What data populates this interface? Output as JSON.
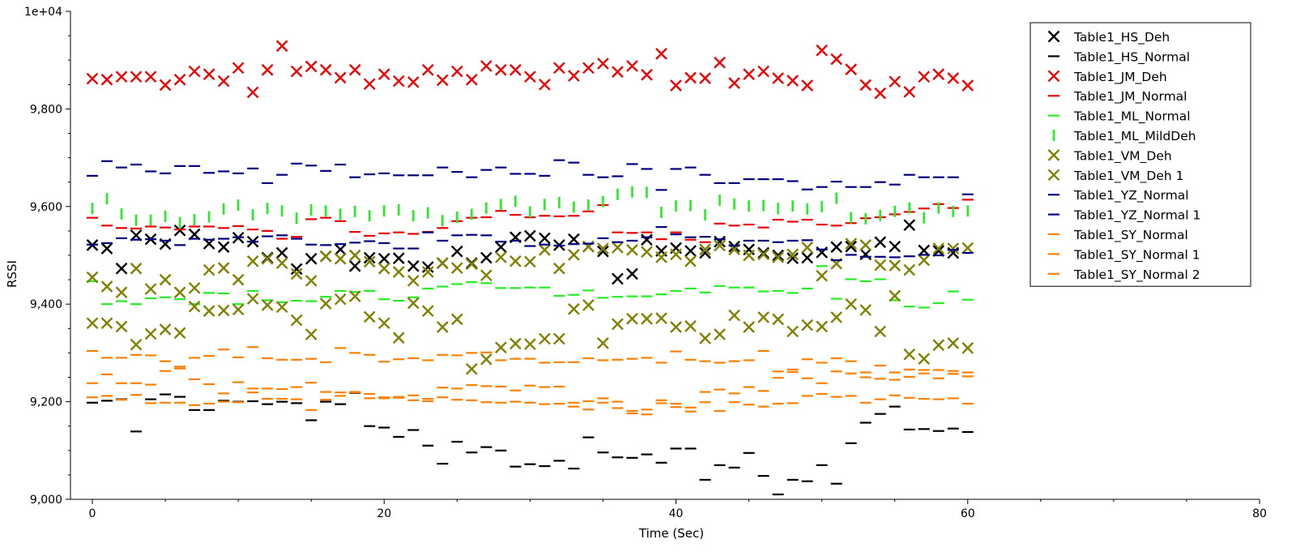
{
  "chart_data": {
    "type": "scatter",
    "xlabel": "Time (Sec)",
    "ylabel": "RSSI",
    "xlim": [
      -1.5,
      80
    ],
    "ylim": [
      9000,
      10000
    ],
    "x_ticks": [
      0,
      20,
      40,
      60,
      80
    ],
    "y_ticks": [
      {
        "value": 9000,
        "label": "9,000"
      },
      {
        "value": 9200,
        "label": "9,200"
      },
      {
        "value": 9400,
        "label": "9,400"
      },
      {
        "value": 9600,
        "label": "9,600"
      },
      {
        "value": 9800,
        "label": "9,800"
      },
      {
        "value": 10000,
        "label": "1e+04"
      }
    ],
    "grid": false,
    "legend_position": "top-right",
    "series": [
      {
        "name": "Table1_HS_Deh",
        "marker": "x",
        "color": "#000000",
        "values": [
          9521,
          9514,
          9473,
          9541,
          9533,
          9523,
          9551,
          9543,
          9524,
          9517,
          9536,
          9528,
          9495,
          9505,
          9472,
          9493,
          9498,
          9512,
          9478,
          9495,
          9493,
          9494,
          9478,
          9476,
          9484,
          9508,
          9484,
          9495,
          9517,
          9537,
          9540,
          9535,
          9521,
          9533,
          9518,
          9508,
          9452,
          9462,
          9532,
          9509,
          9515,
          9509,
          9505,
          9528,
          9518,
          9512,
          9505,
          9500,
          9494,
          9495,
          9506,
          9517,
          9518,
          9502,
          9527,
          9518,
          9562,
          9510,
          9509,
          9505
        ]
      },
      {
        "name": "Table1_HS_Normal",
        "marker": "hline",
        "color": "#000000",
        "values": [
          9198,
          9202,
          9205,
          9139,
          9205,
          9215,
          9210,
          9183,
          9183,
          9202,
          9200,
          9201,
          9195,
          9200,
          9197,
          9162,
          9200,
          9195,
          9218,
          9150,
          9147,
          9128,
          9142,
          9110,
          9073,
          9118,
          9096,
          9107,
          9100,
          9067,
          9072,
          9068,
          9079,
          9063,
          9127,
          9096,
          9086,
          9085,
          9092,
          9075,
          9104,
          9104,
          9040,
          9070,
          9065,
          9095,
          9048,
          9010,
          9040,
          9037,
          9070,
          9032,
          9115,
          9157,
          9175,
          9190,
          9143,
          9144,
          9140,
          9145,
          9138
        ]
      },
      {
        "name": "Table1_JM_Deh",
        "marker": "x",
        "color": "#ee0000",
        "values": [
          9862,
          9860,
          9866,
          9866,
          9866,
          9849,
          9860,
          9877,
          9871,
          9857,
          9884,
          9834,
          9880,
          9929,
          9877,
          9887,
          9880,
          9864,
          9880,
          9851,
          9871,
          9857,
          9855,
          9880,
          9859,
          9877,
          9860,
          9888,
          9880,
          9880,
          9866,
          9850,
          9884,
          9868,
          9884,
          9893,
          9876,
          9888,
          9870,
          9913,
          9848,
          9864,
          9863,
          9895,
          9853,
          9871,
          9877,
          9863,
          9858,
          9848,
          9920,
          9902,
          9881,
          9849,
          9832,
          9856,
          9835,
          9866,
          9871,
          9863,
          9848
        ]
      },
      {
        "name": "Table1_JM_Normal",
        "marker": "hline",
        "color": "#ee0000",
        "values": [
          9577,
          9561,
          9556,
          9555,
          9559,
          9557,
          9553,
          9559,
          9559,
          9556,
          9560,
          9553,
          9550,
          9534,
          9538,
          9574,
          9577,
          9570,
          9548,
          9540,
          9545,
          9547,
          9544,
          9548,
          9556,
          9570,
          9577,
          9578,
          9591,
          9583,
          9578,
          9581,
          9580,
          9581,
          9590,
          9603,
          9547,
          9546,
          9547,
          9533,
          9547,
          9532,
          9527,
          9565,
          9561,
          9563,
          9557,
          9573,
          9569,
          9573,
          9563,
          9561,
          9566,
          9576,
          9578,
          9584,
          9589,
          9596,
          9605,
          9597,
          9614
        ]
      },
      {
        "name": "Table1_ML_Normal",
        "marker": "hline",
        "color": "#22ee22",
        "values": [
          9447,
          9400,
          9406,
          9400,
          9412,
          9414,
          9410,
          9400,
          9423,
          9422,
          9400,
          9427,
          9408,
          9404,
          9407,
          9406,
          9415,
          9427,
          9425,
          9427,
          9410,
          9407,
          9414,
          9432,
          9436,
          9441,
          9445,
          9443,
          9433,
          9433,
          9434,
          9434,
          9417,
          9419,
          9428,
          9413,
          9415,
          9416,
          9416,
          9420,
          9427,
          9432,
          9424,
          9437,
          9434,
          9434,
          9426,
          9427,
          9423,
          9432,
          9478,
          9411,
          9451,
          9447,
          9451,
          9408,
          9395,
          9393,
          9402,
          9426,
          9409
        ]
      },
      {
        "name": "Table1_ML_MildDeh",
        "marker": "vline",
        "color": "#22ee22",
        "values": [
          9596,
          9616,
          9585,
          9572,
          9572,
          9580,
          9567,
          9573,
          9579,
          9595,
          9603,
          9583,
          9596,
          9591,
          9576,
          9593,
          9591,
          9584,
          9590,
          9581,
          9591,
          9593,
          9581,
          9587,
          9571,
          9578,
          9584,
          9597,
          9604,
          9611,
          9589,
          9604,
          9608,
          9599,
          9603,
          9610,
          9625,
          9630,
          9629,
          9588,
          9601,
          9602,
          9583,
          9613,
          9605,
          9601,
          9602,
          9596,
          9601,
          9595,
          9600,
          9617,
          9577,
          9575,
          9582,
          9590,
          9597,
          9577,
          9597,
          9590,
          9591
        ]
      },
      {
        "name": "Table1_VM_Deh",
        "marker": "x",
        "color": "#808000",
        "values": [
          9455,
          9436,
          9424,
          9473,
          9431,
          9450,
          9424,
          9433,
          9470,
          9474,
          9450,
          9488,
          9493,
          9484,
          9462,
          9448,
          9498,
          9493,
          9500,
          9487,
          9473,
          9466,
          9448,
          9466,
          9484,
          9474,
          9482,
          9459,
          9496,
          9488,
          9487,
          9511,
          9473,
          9501,
          9518,
          9514,
          9516,
          9511,
          9507,
          9496,
          9502,
          9488,
          9512,
          9520,
          9512,
          9500,
          9502,
          9496,
          9502,
          9516,
          9458,
          9483,
          9524,
          9521,
          9480,
          9479,
          9470,
          9490,
          9514,
          9514,
          9515
        ]
      },
      {
        "name": "Table1_VM_Deh 1",
        "marker": "x",
        "color": "#808000",
        "values": [
          9361,
          9361,
          9354,
          9317,
          9339,
          9348,
          9341,
          9395,
          9386,
          9387,
          9389,
          9411,
          9398,
          9394,
          9367,
          9338,
          9401,
          9410,
          9416,
          9374,
          9361,
          9331,
          9402,
          9386,
          9353,
          9369,
          9267,
          9287,
          9311,
          9319,
          9318,
          9329,
          9329,
          9390,
          9398,
          9320,
          9359,
          9370,
          9370,
          9371,
          9353,
          9355,
          9330,
          9338,
          9377,
          9353,
          9373,
          9369,
          9344,
          9357,
          9354,
          9373,
          9400,
          9388,
          9344,
          9417,
          9297,
          9288,
          9316,
          9320,
          9310
        ]
      },
      {
        "name": "Table1_YZ_Normal",
        "marker": "hline",
        "color": "#000080",
        "values": [
          9663,
          9693,
          9680,
          9686,
          9672,
          9668,
          9683,
          9683,
          9669,
          9672,
          9668,
          9678,
          9648,
          9665,
          9688,
          9684,
          9673,
          9686,
          9660,
          9666,
          9668,
          9664,
          9664,
          9664,
          9680,
          9671,
          9660,
          9675,
          9680,
          9667,
          9667,
          9663,
          9695,
          9690,
          9665,
          9660,
          9662,
          9687,
          9677,
          9634,
          9677,
          9680,
          9665,
          9648,
          9648,
          9656,
          9656,
          9656,
          9652,
          9635,
          9640,
          9651,
          9640,
          9640,
          9650,
          9645,
          9665,
          9660,
          9660,
          9660,
          9625
        ]
      },
      {
        "name": "Table1_YZ_Normal 1",
        "marker": "hline",
        "color": "#000080",
        "values": [
          9522,
          9525,
          9535,
          9532,
          9533,
          9530,
          9521,
          9534,
          9532,
          9534,
          9537,
          9528,
          9539,
          9541,
          9534,
          9522,
          9521,
          9523,
          9526,
          9529,
          9525,
          9514,
          9514,
          9547,
          9530,
          9541,
          9542,
          9541,
          9528,
          9530,
          9519,
          9522,
          9520,
          9523,
          9524,
          9535,
          9527,
          9530,
          9537,
          9558,
          9543,
          9537,
          9538,
          9533,
          9520,
          9530,
          9530,
          9527,
          9530,
          9531,
          9512,
          9490,
          9501,
          9497,
          9497,
          9496,
          9498,
          9501,
          9500,
          9511,
          9505
        ]
      },
      {
        "name": "Table1_SY_Normal",
        "marker": "hline",
        "color": "#ff8000",
        "values": [
          9304,
          9290,
          9290,
          9296,
          9295,
          9283,
          9272,
          9290,
          9294,
          9307,
          9291,
          9312,
          9289,
          9286,
          9286,
          9288,
          9281,
          9310,
          9300,
          9296,
          9282,
          9287,
          9289,
          9285,
          9296,
          9295,
          9300,
          9301,
          9285,
          9288,
          9288,
          9280,
          9281,
          9281,
          9289,
          9285,
          9286,
          9288,
          9290,
          9280,
          9303,
          9286,
          9283,
          9280,
          9283,
          9285,
          9304,
          9262,
          9266,
          9287,
          9280,
          9289,
          9283,
          9260,
          9274,
          9260,
          9266,
          9265,
          9265,
          9263,
          9260
        ]
      },
      {
        "name": "Table1_SY_Normal 1",
        "marker": "hline",
        "color": "#ff8000",
        "values": [
          9238,
          9256,
          9238,
          9238,
          9235,
          9263,
          9268,
          9246,
          9236,
          9217,
          9240,
          9227,
          9227,
          9226,
          9230,
          9239,
          9220,
          9219,
          9219,
          9216,
          9207,
          9208,
          9213,
          9206,
          9229,
          9227,
          9234,
          9232,
          9231,
          9223,
          9233,
          9230,
          9231,
          9190,
          9201,
          9207,
          9200,
          9176,
          9174,
          9203,
          9189,
          9188,
          9220,
          9225,
          9217,
          9230,
          9222,
          9249,
          9261,
          9248,
          9238,
          9262,
          9258,
          9250,
          9247,
          9245,
          9251,
          9258,
          9248,
          9257,
          9252
        ]
      },
      {
        "name": "Table1_SY_Normal 2",
        "marker": "hline",
        "color": "#ff8000",
        "values": [
          9209,
          9212,
          9204,
          9214,
          9197,
          9198,
          9198,
          9193,
          9196,
          9200,
          9199,
          9219,
          9206,
          9206,
          9205,
          9183,
          9204,
          9212,
          9220,
          9207,
          9209,
          9210,
          9203,
          9201,
          9209,
          9204,
          9203,
          9199,
          9198,
          9200,
          9198,
          9195,
          9196,
          9198,
          9184,
          9198,
          9187,
          9181,
          9184,
          9197,
          9196,
          9180,
          9199,
          9181,
          9199,
          9194,
          9190,
          9196,
          9197,
          9212,
          9216,
          9210,
          9212,
          9198,
          9205,
          9213,
          9208,
          9206,
          9205,
          9207,
          9196
        ]
      }
    ]
  }
}
